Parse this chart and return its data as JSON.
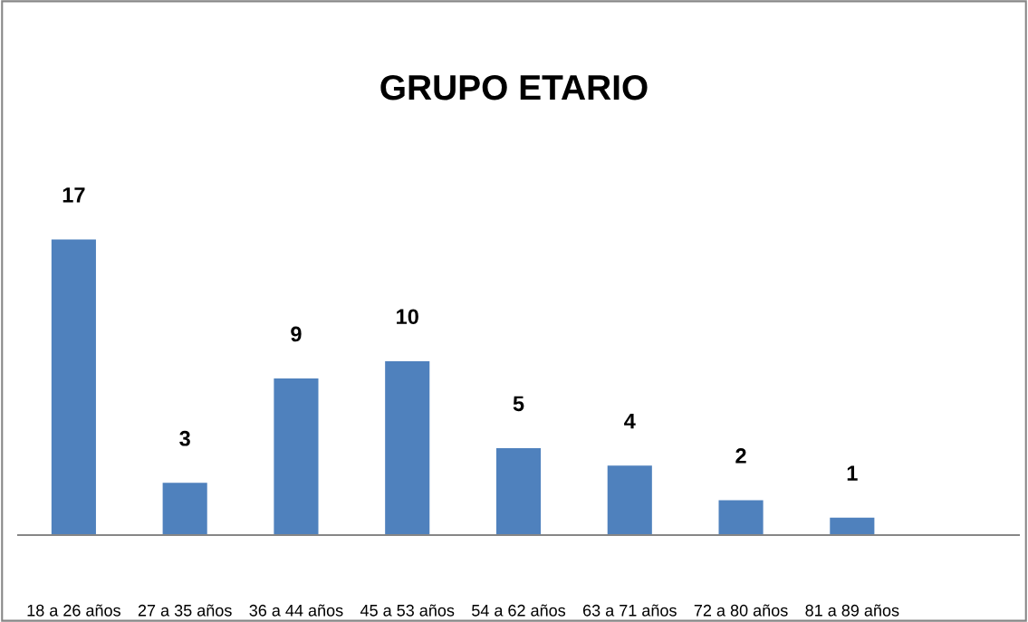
{
  "chart_data": {
    "type": "bar",
    "title": "GRUPO ETARIO",
    "categories": [
      "18 a 26 años",
      "27 a 35 años",
      "36 a 44 años",
      "45 a 53 años",
      "54 a 62 años",
      "63 a 71 años",
      "72 a 80 años",
      "81 a 89 años",
      null
    ],
    "values": [
      17,
      3,
      9,
      10,
      5,
      4,
      2,
      1,
      null
    ],
    "color": "#4f81bd",
    "data_labels": true,
    "grid": false,
    "legend": false,
    "tick_labels": "x"
  }
}
